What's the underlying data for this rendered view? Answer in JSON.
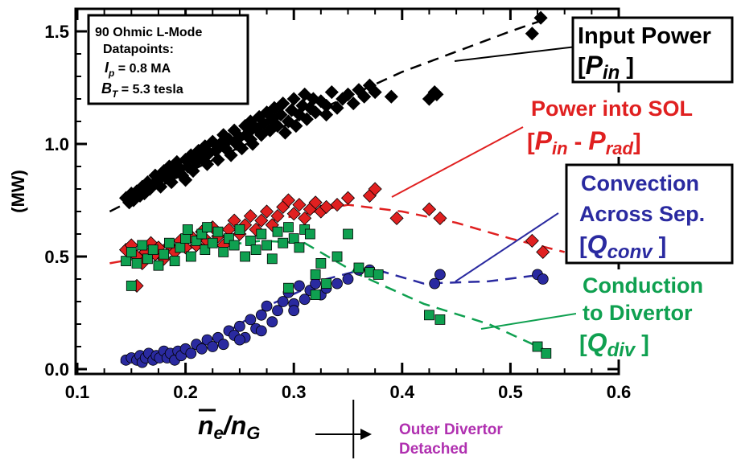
{
  "chart_data": {
    "type": "scatter",
    "ylabel": "(MW)",
    "xlabel_main": "n",
    "xlabel_sub1": "e",
    "xlabel_div": "/n",
    "xlabel_sub2": "G",
    "xlim": [
      0.1,
      0.6
    ],
    "ylim": [
      0.0,
      1.6
    ],
    "xticks": [
      "0.1",
      "0.2",
      "0.3",
      "0.4",
      "0.5",
      "0.6"
    ],
    "yticks": [
      "0.0",
      "0.5",
      "1.0",
      "1.5"
    ],
    "info_box": {
      "line1": "90 Ohmic L-Mode",
      "line2": "Datapoints:",
      "ip_sym": "I",
      "ip_sub": "p",
      "ip_val": " = 0.8 MA",
      "bt_sym": "B",
      "bt_sub": "T",
      "bt_val": " = 5.3 tesla"
    },
    "detached_annotation": {
      "line1": "Outer Divertor",
      "line2": "Detached",
      "x_start": 0.355
    },
    "colors": {
      "input": "#000000",
      "sol": "#e02020",
      "conv": "#2a2aa0",
      "div": "#0fa050",
      "annotation": "#b030b0"
    },
    "series": [
      {
        "key": "input",
        "marker": "diamond",
        "label": {
          "line1": "Input Power",
          "sym": "P",
          "sub": "in"
        },
        "trend": [
          [
            0.13,
            0.7
          ],
          [
            0.2,
            0.87
          ],
          [
            0.3,
            1.1
          ],
          [
            0.4,
            1.32
          ],
          [
            0.5,
            1.5
          ],
          [
            0.53,
            1.55
          ]
        ],
        "points": [
          [
            0.145,
            0.76
          ],
          [
            0.148,
            0.74
          ],
          [
            0.15,
            0.78
          ],
          [
            0.152,
            0.75
          ],
          [
            0.155,
            0.79
          ],
          [
            0.158,
            0.77
          ],
          [
            0.16,
            0.81
          ],
          [
            0.162,
            0.78
          ],
          [
            0.165,
            0.83
          ],
          [
            0.167,
            0.8
          ],
          [
            0.17,
            0.82
          ],
          [
            0.172,
            0.86
          ],
          [
            0.175,
            0.84
          ],
          [
            0.177,
            0.81
          ],
          [
            0.18,
            0.88
          ],
          [
            0.182,
            0.85
          ],
          [
            0.185,
            0.9
          ],
          [
            0.187,
            0.83
          ],
          [
            0.19,
            0.87
          ],
          [
            0.192,
            0.92
          ],
          [
            0.195,
            0.89
          ],
          [
            0.197,
            0.86
          ],
          [
            0.2,
            0.93
          ],
          [
            0.202,
            0.9
          ],
          [
            0.205,
            0.95
          ],
          [
            0.207,
            0.88
          ],
          [
            0.21,
            0.92
          ],
          [
            0.212,
            0.97
          ],
          [
            0.215,
            0.94
          ],
          [
            0.218,
            0.99
          ],
          [
            0.22,
            0.91
          ],
          [
            0.222,
            0.96
          ],
          [
            0.225,
            1.01
          ],
          [
            0.228,
            0.97
          ],
          [
            0.23,
            0.93
          ],
          [
            0.232,
            1.0
          ],
          [
            0.235,
            1.04
          ],
          [
            0.237,
            0.98
          ],
          [
            0.24,
            1.02
          ],
          [
            0.242,
            0.95
          ],
          [
            0.245,
            1.06
          ],
          [
            0.247,
            1.0
          ],
          [
            0.25,
            1.03
          ],
          [
            0.252,
            0.98
          ],
          [
            0.255,
            1.08
          ],
          [
            0.258,
            1.05
          ],
          [
            0.26,
            1.1
          ],
          [
            0.262,
            1.0
          ],
          [
            0.265,
            1.07
          ],
          [
            0.268,
            1.12
          ],
          [
            0.27,
            1.04
          ],
          [
            0.272,
            1.09
          ],
          [
            0.275,
            1.14
          ],
          [
            0.278,
            1.06
          ],
          [
            0.28,
            1.11
          ],
          [
            0.282,
            1.16
          ],
          [
            0.285,
            1.08
          ],
          [
            0.288,
            1.13
          ],
          [
            0.29,
            1.18
          ],
          [
            0.292,
            1.05
          ],
          [
            0.295,
            1.1
          ],
          [
            0.298,
            1.15
          ],
          [
            0.3,
            1.2
          ],
          [
            0.302,
            1.08
          ],
          [
            0.305,
            1.13
          ],
          [
            0.308,
            1.17
          ],
          [
            0.31,
            1.22
          ],
          [
            0.312,
            1.11
          ],
          [
            0.315,
            1.16
          ],
          [
            0.318,
            1.2
          ],
          [
            0.32,
            1.14
          ],
          [
            0.325,
            1.19
          ],
          [
            0.33,
            1.17
          ],
          [
            0.335,
            1.23
          ],
          [
            0.34,
            1.16
          ],
          [
            0.345,
            1.2
          ],
          [
            0.35,
            1.22
          ],
          [
            0.355,
            1.18
          ],
          [
            0.36,
            1.24
          ],
          [
            0.365,
            1.21
          ],
          [
            0.37,
            1.26
          ],
          [
            0.375,
            1.23
          ],
          [
            0.39,
            1.21
          ],
          [
            0.425,
            1.2
          ],
          [
            0.43,
            1.23
          ],
          [
            0.432,
            1.22
          ],
          [
            0.52,
            1.49
          ],
          [
            0.528,
            1.56
          ],
          [
            0.2,
            0.84
          ],
          [
            0.26,
            1.02
          ],
          [
            0.33,
            1.13
          ]
        ]
      },
      {
        "key": "sol",
        "marker": "diamond",
        "label": {
          "line1": "Power into SOL",
          "sym": "P",
          "sub": "in",
          "sep": " - ",
          "sym2": "P",
          "sub2": "rad"
        },
        "trend": [
          [
            0.13,
            0.47
          ],
          [
            0.2,
            0.53
          ],
          [
            0.28,
            0.66
          ],
          [
            0.35,
            0.73
          ],
          [
            0.4,
            0.7
          ],
          [
            0.45,
            0.65
          ],
          [
            0.5,
            0.58
          ],
          [
            0.55,
            0.52
          ]
        ],
        "points": [
          [
            0.145,
            0.53
          ],
          [
            0.15,
            0.55
          ],
          [
            0.155,
            0.5
          ],
          [
            0.16,
            0.47
          ],
          [
            0.163,
            0.52
          ],
          [
            0.168,
            0.56
          ],
          [
            0.172,
            0.51
          ],
          [
            0.175,
            0.54
          ],
          [
            0.18,
            0.49
          ],
          [
            0.185,
            0.55
          ],
          [
            0.19,
            0.52
          ],
          [
            0.195,
            0.57
          ],
          [
            0.2,
            0.54
          ],
          [
            0.205,
            0.59
          ],
          [
            0.21,
            0.55
          ],
          [
            0.215,
            0.61
          ],
          [
            0.22,
            0.57
          ],
          [
            0.225,
            0.63
          ],
          [
            0.23,
            0.59
          ],
          [
            0.235,
            0.55
          ],
          [
            0.24,
            0.62
          ],
          [
            0.245,
            0.66
          ],
          [
            0.25,
            0.6
          ],
          [
            0.255,
            0.64
          ],
          [
            0.26,
            0.68
          ],
          [
            0.265,
            0.62
          ],
          [
            0.27,
            0.66
          ],
          [
            0.275,
            0.7
          ],
          [
            0.28,
            0.64
          ],
          [
            0.285,
            0.68
          ],
          [
            0.29,
            0.72
          ],
          [
            0.295,
            0.75
          ],
          [
            0.3,
            0.69
          ],
          [
            0.305,
            0.73
          ],
          [
            0.31,
            0.67
          ],
          [
            0.315,
            0.71
          ],
          [
            0.32,
            0.74
          ],
          [
            0.325,
            0.7
          ],
          [
            0.33,
            0.72
          ],
          [
            0.34,
            0.73
          ],
          [
            0.35,
            0.76
          ],
          [
            0.37,
            0.77
          ],
          [
            0.375,
            0.8
          ],
          [
            0.395,
            0.67
          ],
          [
            0.425,
            0.71
          ],
          [
            0.435,
            0.67
          ],
          [
            0.52,
            0.57
          ],
          [
            0.53,
            0.52
          ],
          [
            0.155,
            0.37
          ]
        ]
      },
      {
        "key": "conv",
        "marker": "circle",
        "label": {
          "line1": "Convection",
          "line2": "Across Sep.",
          "sym": "Q",
          "sub": "conv"
        },
        "trend": [
          [
            0.14,
            0.03
          ],
          [
            0.18,
            0.06
          ],
          [
            0.23,
            0.14
          ],
          [
            0.28,
            0.29
          ],
          [
            0.33,
            0.4
          ],
          [
            0.37,
            0.45
          ],
          [
            0.42,
            0.38
          ],
          [
            0.48,
            0.39
          ],
          [
            0.53,
            0.42
          ]
        ],
        "points": [
          [
            0.145,
            0.04
          ],
          [
            0.15,
            0.05
          ],
          [
            0.155,
            0.04
          ],
          [
            0.158,
            0.06
          ],
          [
            0.16,
            0.03
          ],
          [
            0.163,
            0.05
          ],
          [
            0.166,
            0.07
          ],
          [
            0.17,
            0.04
          ],
          [
            0.173,
            0.06
          ],
          [
            0.176,
            0.05
          ],
          [
            0.18,
            0.08
          ],
          [
            0.183,
            0.05
          ],
          [
            0.186,
            0.07
          ],
          [
            0.19,
            0.04
          ],
          [
            0.193,
            0.08
          ],
          [
            0.196,
            0.06
          ],
          [
            0.2,
            0.09
          ],
          [
            0.205,
            0.07
          ],
          [
            0.21,
            0.11
          ],
          [
            0.215,
            0.09
          ],
          [
            0.22,
            0.13
          ],
          [
            0.225,
            0.1
          ],
          [
            0.23,
            0.14
          ],
          [
            0.235,
            0.11
          ],
          [
            0.24,
            0.17
          ],
          [
            0.245,
            0.15
          ],
          [
            0.25,
            0.19
          ],
          [
            0.255,
            0.14
          ],
          [
            0.26,
            0.22
          ],
          [
            0.265,
            0.18
          ],
          [
            0.27,
            0.24
          ],
          [
            0.275,
            0.28
          ],
          [
            0.28,
            0.21
          ],
          [
            0.285,
            0.26
          ],
          [
            0.29,
            0.3
          ],
          [
            0.295,
            0.34
          ],
          [
            0.3,
            0.29
          ],
          [
            0.305,
            0.37
          ],
          [
            0.31,
            0.31
          ],
          [
            0.315,
            0.35
          ],
          [
            0.32,
            0.38
          ],
          [
            0.325,
            0.33
          ],
          [
            0.33,
            0.36
          ],
          [
            0.34,
            0.38
          ],
          [
            0.35,
            0.4
          ],
          [
            0.36,
            0.44
          ],
          [
            0.37,
            0.44
          ],
          [
            0.43,
            0.38
          ],
          [
            0.435,
            0.42
          ],
          [
            0.525,
            0.42
          ],
          [
            0.53,
            0.4
          ],
          [
            0.25,
            0.13
          ],
          [
            0.27,
            0.17
          ],
          [
            0.3,
            0.26
          ]
        ]
      },
      {
        "key": "div",
        "marker": "square",
        "label": {
          "line1": "Conduction",
          "line2": "to Divertor",
          "sym": "Q",
          "sub": "div"
        },
        "trend": [
          [
            0.14,
            0.48
          ],
          [
            0.2,
            0.53
          ],
          [
            0.27,
            0.57
          ],
          [
            0.31,
            0.56
          ],
          [
            0.36,
            0.42
          ],
          [
            0.42,
            0.29
          ],
          [
            0.48,
            0.2
          ],
          [
            0.53,
            0.09
          ]
        ],
        "points": [
          [
            0.145,
            0.48
          ],
          [
            0.15,
            0.52
          ],
          [
            0.155,
            0.47
          ],
          [
            0.16,
            0.55
          ],
          [
            0.165,
            0.49
          ],
          [
            0.17,
            0.53
          ],
          [
            0.175,
            0.46
          ],
          [
            0.18,
            0.51
          ],
          [
            0.185,
            0.56
          ],
          [
            0.19,
            0.48
          ],
          [
            0.195,
            0.54
          ],
          [
            0.2,
            0.58
          ],
          [
            0.202,
            0.62
          ],
          [
            0.205,
            0.5
          ],
          [
            0.21,
            0.57
          ],
          [
            0.215,
            0.6
          ],
          [
            0.218,
            0.53
          ],
          [
            0.22,
            0.63
          ],
          [
            0.225,
            0.56
          ],
          [
            0.23,
            0.61
          ],
          [
            0.235,
            0.52
          ],
          [
            0.24,
            0.58
          ],
          [
            0.245,
            0.55
          ],
          [
            0.25,
            0.62
          ],
          [
            0.255,
            0.5
          ],
          [
            0.26,
            0.57
          ],
          [
            0.265,
            0.53
          ],
          [
            0.27,
            0.6
          ],
          [
            0.275,
            0.55
          ],
          [
            0.28,
            0.49
          ],
          [
            0.285,
            0.61
          ],
          [
            0.29,
            0.56
          ],
          [
            0.295,
            0.63
          ],
          [
            0.3,
            0.58
          ],
          [
            0.305,
            0.54
          ],
          [
            0.31,
            0.62
          ],
          [
            0.315,
            0.6
          ],
          [
            0.32,
            0.42
          ],
          [
            0.325,
            0.47
          ],
          [
            0.33,
            0.38
          ],
          [
            0.34,
            0.5
          ],
          [
            0.35,
            0.6
          ],
          [
            0.36,
            0.45
          ],
          [
            0.37,
            0.43
          ],
          [
            0.378,
            0.42
          ],
          [
            0.425,
            0.24
          ],
          [
            0.435,
            0.22
          ],
          [
            0.525,
            0.1
          ],
          [
            0.533,
            0.07
          ],
          [
            0.15,
            0.37
          ],
          [
            0.295,
            0.36
          ],
          [
            0.32,
            0.33
          ]
        ]
      }
    ]
  }
}
